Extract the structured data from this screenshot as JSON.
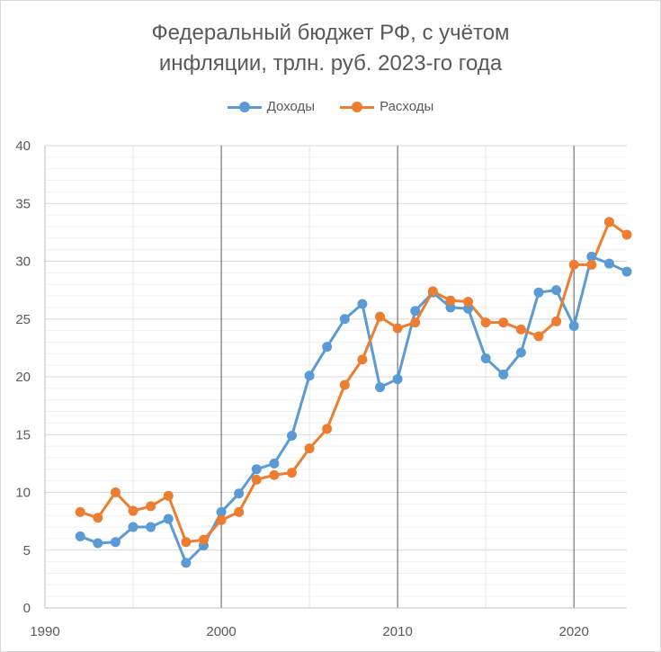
{
  "chart_data": {
    "type": "line",
    "title_line1": "Федеральный бюджет РФ, с учётом",
    "title_line2": "инфляции, трлн. руб. 2023-го года",
    "xlim": [
      1990,
      2023
    ],
    "ylim": [
      0,
      40
    ],
    "x_ticks": [
      "1990",
      "2000",
      "2010",
      "2020"
    ],
    "y_ticks": [
      "0",
      "5",
      "10",
      "15",
      "20",
      "25",
      "30",
      "35",
      "40"
    ],
    "grid": true,
    "legend_position": "top",
    "x": [
      1992,
      1993,
      1994,
      1995,
      1996,
      1997,
      1998,
      1999,
      2000,
      2001,
      2002,
      2003,
      2004,
      2005,
      2006,
      2007,
      2008,
      2009,
      2010,
      2011,
      2012,
      2013,
      2014,
      2015,
      2016,
      2017,
      2018,
      2019,
      2020,
      2021,
      2022,
      2023
    ],
    "series": [
      {
        "name": "Доходы",
        "color": "#5B9BD5",
        "values": [
          6.2,
          5.6,
          5.7,
          7.0,
          7.0,
          7.7,
          3.9,
          5.4,
          8.3,
          9.9,
          12.0,
          12.5,
          14.9,
          20.1,
          22.6,
          25.0,
          26.3,
          19.1,
          19.8,
          25.7,
          27.3,
          26.0,
          25.9,
          21.6,
          20.2,
          22.1,
          27.3,
          27.5,
          24.4,
          30.4,
          29.8,
          29.1
        ]
      },
      {
        "name": "Расходы",
        "color": "#ED7D31",
        "values": [
          8.3,
          7.8,
          10.0,
          8.4,
          8.8,
          9.7,
          5.7,
          5.9,
          7.6,
          8.3,
          11.1,
          11.5,
          11.7,
          13.8,
          15.5,
          19.3,
          21.5,
          25.2,
          24.2,
          24.7,
          27.4,
          26.6,
          26.5,
          24.7,
          24.7,
          24.1,
          23.5,
          24.8,
          29.7,
          29.7,
          33.4,
          32.3
        ]
      }
    ]
  }
}
